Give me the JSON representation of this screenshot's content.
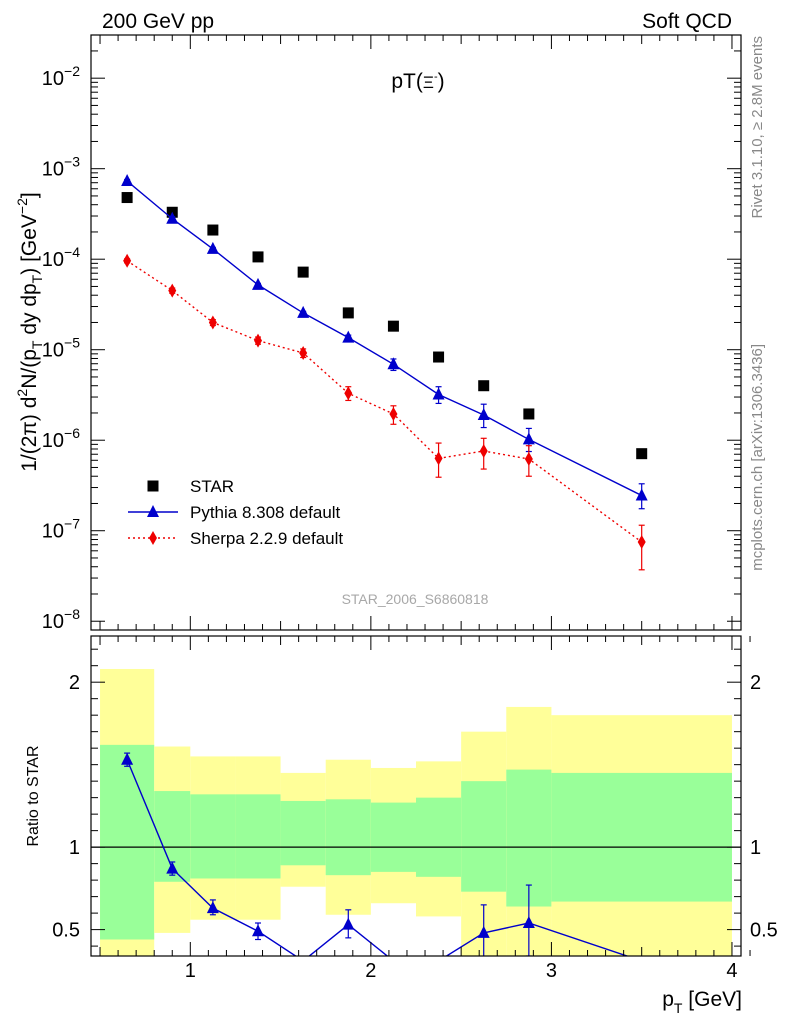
{
  "header": {
    "left": "200 GeV pp",
    "right": "Soft QCD"
  },
  "side_labels": {
    "rivet": "Rivet 3.1.10, ≥ 2.8M events",
    "mcplots": "mcplots.cern.ch [arXiv:1306.3436]"
  },
  "chart_data": [
    {
      "type": "scatter",
      "title": "pT(Ξ⁻)",
      "watermark": "STAR_2006_S6860818",
      "ylabel_html": "1/(2π) d²N/(p_T dy dp_T) [GeV⁻²]",
      "y_scale": "log",
      "xlim": [
        0.45,
        4.05
      ],
      "ylim": [
        8e-09,
        0.03
      ],
      "y_ticks": [
        {
          "value": 1e-08,
          "label_base": "10",
          "label_exp": "−8"
        },
        {
          "value": 1e-07,
          "label_base": "10",
          "label_exp": "−7"
        },
        {
          "value": 1e-06,
          "label_base": "10",
          "label_exp": "−6"
        },
        {
          "value": 1e-05,
          "label_base": "10",
          "label_exp": "−5"
        },
        {
          "value": 0.0001,
          "label_base": "10",
          "label_exp": "−4"
        },
        {
          "value": 0.001,
          "label_base": "10",
          "label_exp": "−3"
        },
        {
          "value": 0.01,
          "label_base": "10",
          "label_exp": "−2"
        }
      ],
      "legend_position": "bottom-left",
      "series": [
        {
          "name": "STAR",
          "marker": "square",
          "color": "#000000",
          "x": [
            0.65,
            0.9,
            1.125,
            1.375,
            1.625,
            1.875,
            2.125,
            2.375,
            2.625,
            2.875,
            3.5
          ],
          "y": [
            0.00048,
            0.00033,
            0.00021,
            0.000106,
            7.2e-05,
            2.55e-05,
            1.82e-05,
            8.3e-06,
            4e-06,
            1.95e-06,
            7.1e-07
          ],
          "xerr": [
            0.15,
            0.1,
            0.125,
            0.125,
            0.125,
            0.125,
            0.125,
            0.125,
            0.125,
            0.125,
            0.5
          ]
        },
        {
          "name": "Pythia 8.308 default",
          "marker": "triangle",
          "line": "solid",
          "color": "#0000cc",
          "x": [
            0.65,
            0.9,
            1.125,
            1.375,
            1.625,
            1.875,
            2.125,
            2.375,
            2.625,
            2.875,
            3.5
          ],
          "y": [
            0.00073,
            0.00028,
            0.00013,
            5.2e-05,
            2.55e-05,
            1.36e-05,
            6.9e-06,
            3.2e-06,
            1.9e-06,
            1.02e-06,
            2.45e-07
          ],
          "yerr_lo": [
            0.0007,
            0.000265,
            0.000125,
            5e-05,
            2.45e-05,
            1.28e-05,
            5.9e-06,
            2.55e-06,
            1.38e-06,
            7.5e-07,
            1.75e-07
          ],
          "yerr_hi": [
            0.00076,
            0.000295,
            0.000135,
            5.4e-05,
            2.65e-05,
            1.45e-05,
            7.9e-06,
            3.9e-06,
            2.5e-06,
            1.35e-06,
            3.3e-07
          ]
        },
        {
          "name": "Sherpa 2.2.9 default",
          "marker": "diamond",
          "line": "dotted",
          "color": "#ee0000",
          "x": [
            0.65,
            0.9,
            1.125,
            1.375,
            1.625,
            1.875,
            2.125,
            2.375,
            2.625,
            2.875,
            3.5
          ],
          "y": [
            9.6e-05,
            4.5e-05,
            2e-05,
            1.26e-05,
            9.2e-06,
            3.3e-06,
            1.95e-06,
            6.3e-07,
            7.6e-07,
            6.2e-07,
            7.5e-08
          ],
          "yerr_lo": [
            9.1e-05,
            4.2e-05,
            1.85e-05,
            1.15e-05,
            8.2e-06,
            2.75e-06,
            1.5e-06,
            3.9e-07,
            4.8e-07,
            4e-07,
            3.7e-08
          ],
          "yerr_hi": [
            0.000101,
            4.8e-05,
            2.15e-05,
            1.38e-05,
            1.02e-05,
            3.9e-06,
            2.4e-06,
            9.3e-07,
            1.05e-06,
            8.7e-07,
            1.15e-07
          ]
        }
      ]
    },
    {
      "type": "area",
      "ylabel": "Ratio to STAR",
      "xlabel_html": "p_T [GeV]",
      "xlim": [
        0.45,
        4.05
      ],
      "ylim": [
        0.34,
        2.28
      ],
      "x_ticks": [
        {
          "value": 1,
          "label": "1"
        },
        {
          "value": 2,
          "label": "2"
        },
        {
          "value": 3,
          "label": "3"
        },
        {
          "value": 4,
          "label": "4"
        }
      ],
      "y_ticks": [
        {
          "value": 0.5,
          "label": "0.5"
        },
        {
          "value": 1,
          "label": "1"
        },
        {
          "value": 2,
          "label": "2"
        }
      ],
      "reference_line": 1,
      "bands": {
        "bins": [
          [
            0.5,
            0.8
          ],
          [
            0.8,
            1.0
          ],
          [
            1.0,
            1.25
          ],
          [
            1.25,
            1.5
          ],
          [
            1.5,
            1.75
          ],
          [
            1.75,
            2.0
          ],
          [
            2.0,
            2.25
          ],
          [
            2.25,
            2.5
          ],
          [
            2.5,
            2.75
          ],
          [
            2.75,
            3.0
          ],
          [
            3.0,
            4.0
          ]
        ],
        "inner_color": "#99ff99",
        "outer_color": "#ffff99",
        "inner_lo": [
          0.44,
          0.79,
          0.81,
          0.81,
          0.89,
          0.83,
          0.85,
          0.82,
          0.73,
          0.64,
          0.67
        ],
        "inner_hi": [
          1.62,
          1.34,
          1.32,
          1.32,
          1.28,
          1.29,
          1.27,
          1.3,
          1.4,
          1.47,
          1.45
        ],
        "outer_lo": [
          0.34,
          0.48,
          0.56,
          0.56,
          0.76,
          0.59,
          0.66,
          0.58,
          0.34,
          0.34,
          0.34
        ],
        "outer_hi": [
          2.08,
          1.61,
          1.55,
          1.55,
          1.45,
          1.53,
          1.48,
          1.52,
          1.7,
          1.85,
          1.8
        ]
      },
      "series": [
        {
          "name": "Pythia 8.308 default",
          "marker": "triangle",
          "line": "solid",
          "color": "#0000cc",
          "x": [
            0.65,
            0.9,
            1.125,
            1.375,
            1.625,
            1.875,
            2.125,
            2.375,
            2.625,
            2.875,
            3.5
          ],
          "y": [
            1.53,
            0.87,
            0.63,
            0.49,
            0.31,
            0.53,
            0.31,
            0.31,
            0.48,
            0.54,
            0.31
          ],
          "yerr_lo": [
            1.49,
            0.83,
            0.59,
            0.44,
            null,
            0.45,
            null,
            null,
            0.33,
            0.34,
            null
          ],
          "yerr_hi": [
            1.57,
            0.91,
            0.68,
            0.54,
            null,
            0.62,
            null,
            null,
            0.65,
            0.77,
            null
          ]
        }
      ]
    }
  ]
}
